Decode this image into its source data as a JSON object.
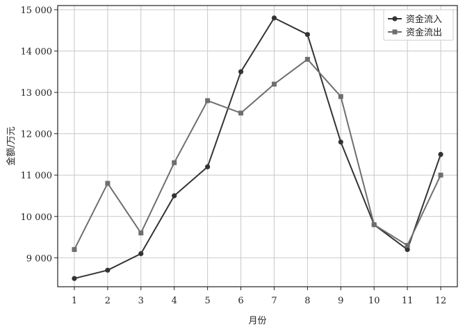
{
  "chart_data": {
    "type": "line",
    "title": "",
    "xlabel": "月份",
    "ylabel": "金额/万元",
    "x": [
      1,
      2,
      3,
      4,
      5,
      6,
      7,
      8,
      9,
      10,
      11,
      12
    ],
    "x_tick_labels": [
      "1",
      "2",
      "3",
      "4",
      "5",
      "6",
      "7",
      "8",
      "9",
      "10",
      "11",
      "12"
    ],
    "xlim": [
      0.5,
      12.5
    ],
    "ylim": [
      8300,
      15100
    ],
    "y_ticks": [
      9000,
      10000,
      11000,
      12000,
      13000,
      14000,
      15000
    ],
    "y_tick_labels": [
      "9 000",
      "10 000",
      "11 000",
      "12 000",
      "13 000",
      "14 000",
      "15 000"
    ],
    "grid": true,
    "legend_position": "top-right",
    "series": [
      {
        "name": "资金流入",
        "marker": "circle",
        "color": "#333333",
        "values": [
          8500,
          8700,
          9100,
          10500,
          11200,
          13500,
          14800,
          14400,
          11800,
          9800,
          9200,
          11500
        ]
      },
      {
        "name": "资金流出",
        "marker": "square",
        "color": "#6e6e6e",
        "values": [
          9200,
          10800,
          9600,
          11300,
          12800,
          12500,
          13200,
          13800,
          12900,
          9800,
          9300,
          11000
        ]
      }
    ]
  }
}
